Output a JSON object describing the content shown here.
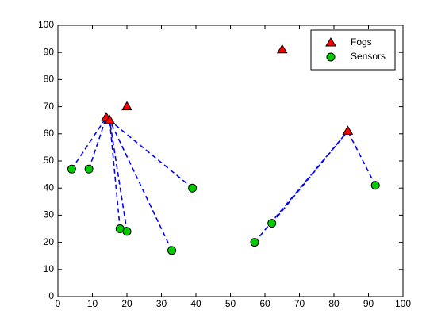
{
  "chart_data": {
    "type": "scatter",
    "series": [
      {
        "name": "Fogs",
        "color": "#ff0000",
        "marker": "triangle",
        "x": [
          14,
          15,
          20,
          65,
          84
        ],
        "y": [
          66,
          65,
          70,
          91,
          61
        ]
      },
      {
        "name": "Sensors",
        "color": "#00cc00",
        "marker": "circle",
        "x": [
          4,
          9,
          18,
          20,
          33,
          39,
          57,
          62,
          92
        ],
        "y": [
          47,
          47,
          25,
          24,
          17,
          40,
          20,
          27,
          41
        ]
      }
    ],
    "links": [
      [
        0,
        0
      ],
      [
        1,
        0
      ],
      [
        2,
        1
      ],
      [
        3,
        1
      ],
      [
        4,
        1
      ],
      [
        5,
        1
      ],
      [
        6,
        4
      ],
      [
        7,
        4
      ],
      [
        8,
        4
      ]
    ],
    "link_color": "#0000ff",
    "xlim": [
      0,
      100
    ],
    "ylim": [
      0,
      100
    ],
    "xticks": [
      0,
      10,
      20,
      30,
      40,
      50,
      60,
      70,
      80,
      90,
      100
    ],
    "yticks": [
      0,
      10,
      20,
      30,
      40,
      50,
      60,
      70,
      80,
      90,
      100
    ],
    "legend": "upper right"
  }
}
